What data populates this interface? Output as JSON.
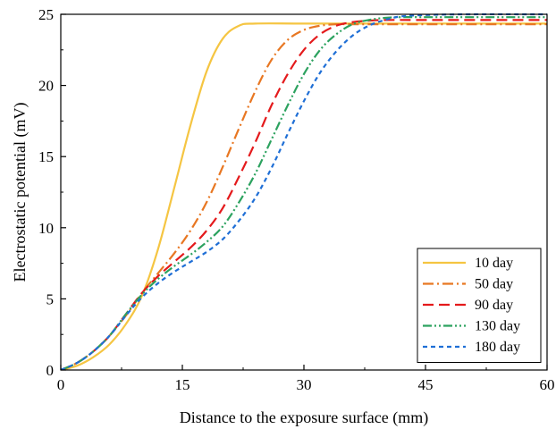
{
  "chart_data": {
    "type": "line",
    "xlabel": "Distance to the exposure surface (mm)",
    "ylabel": "Electrostatic potential (mV)",
    "xlim": [
      0,
      60
    ],
    "ylim": [
      0,
      25
    ],
    "xticks": [
      0,
      15,
      30,
      45,
      60
    ],
    "yticks": [
      0,
      5,
      10,
      15,
      20,
      25
    ],
    "grid": false,
    "legend_position": "bottom-right",
    "series": [
      {
        "name": "10 day",
        "color": "#F5C542",
        "dash": "solid",
        "x": [
          0,
          2,
          4,
          6,
          8,
          10,
          12,
          14,
          16,
          18,
          20,
          22,
          24,
          30,
          40,
          50,
          60
        ],
        "y": [
          0,
          0.3,
          0.9,
          1.8,
          3.2,
          5.2,
          8.5,
          12.8,
          17.2,
          21.0,
          23.3,
          24.2,
          24.35,
          24.35,
          24.35,
          24.35,
          24.35
        ]
      },
      {
        "name": "50 day",
        "color": "#E87722",
        "dash": "dashdot",
        "x": [
          0,
          2,
          4,
          6,
          8,
          10,
          12,
          14,
          16,
          18,
          20,
          22,
          24,
          26,
          28,
          30,
          32,
          34,
          36,
          40,
          45,
          50,
          60
        ],
        "y": [
          0,
          0.5,
          1.3,
          2.4,
          3.8,
          5.4,
          6.8,
          8.2,
          9.8,
          11.8,
          14.3,
          17.0,
          19.6,
          21.8,
          23.2,
          23.9,
          24.2,
          24.3,
          24.3,
          24.3,
          24.3,
          24.3,
          24.3
        ]
      },
      {
        "name": "90 day",
        "color": "#E41A1C",
        "dash": "dash",
        "x": [
          0,
          2,
          4,
          6,
          8,
          10,
          12,
          14,
          16,
          18,
          20,
          22,
          24,
          26,
          28,
          30,
          32,
          34,
          36,
          38,
          40,
          45,
          50,
          60
        ],
        "y": [
          0,
          0.5,
          1.3,
          2.4,
          3.9,
          5.4,
          6.6,
          7.6,
          8.6,
          9.8,
          11.4,
          13.6,
          16.0,
          18.6,
          20.8,
          22.5,
          23.6,
          24.2,
          24.45,
          24.55,
          24.6,
          24.6,
          24.6,
          24.6
        ]
      },
      {
        "name": "130 day",
        "color": "#2CA25F",
        "dash": "dashdotdot",
        "x": [
          0,
          2,
          4,
          6,
          8,
          10,
          12,
          14,
          16,
          18,
          20,
          22,
          24,
          26,
          28,
          30,
          32,
          34,
          36,
          38,
          40,
          42,
          45,
          50,
          60
        ],
        "y": [
          0,
          0.5,
          1.3,
          2.4,
          3.9,
          5.3,
          6.4,
          7.3,
          8.1,
          9.0,
          10.1,
          11.8,
          13.8,
          16.2,
          18.6,
          20.8,
          22.5,
          23.6,
          24.3,
          24.6,
          24.75,
          24.8,
          24.8,
          24.8,
          24.8
        ]
      },
      {
        "name": "180 day",
        "color": "#1F6FD6",
        "dash": "shortdash",
        "x": [
          0,
          2,
          4,
          6,
          8,
          10,
          12,
          14,
          16,
          18,
          20,
          22,
          24,
          26,
          28,
          30,
          32,
          34,
          36,
          38,
          40,
          42,
          45,
          50,
          60
        ],
        "y": [
          0,
          0.5,
          1.3,
          2.4,
          3.8,
          5.1,
          6.1,
          6.9,
          7.6,
          8.3,
          9.2,
          10.5,
          12.1,
          14.2,
          16.6,
          18.9,
          20.9,
          22.4,
          23.5,
          24.2,
          24.6,
          24.85,
          24.95,
          25.0,
          25.0
        ]
      }
    ]
  }
}
